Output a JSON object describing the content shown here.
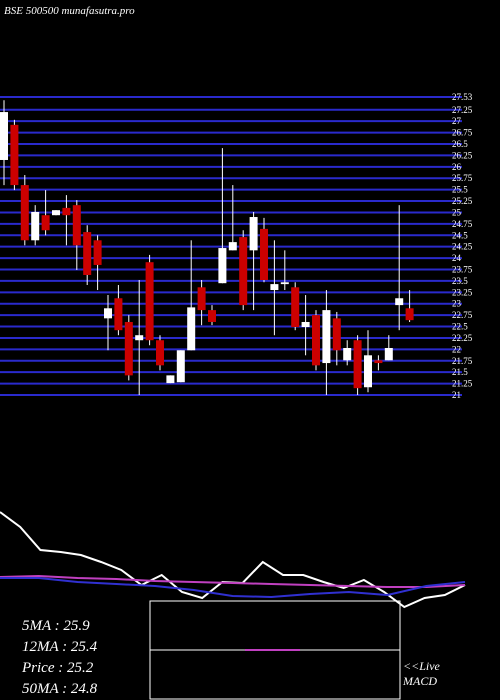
{
  "chart_data": {
    "type": "candlestick",
    "title": "BSE 500500  munafasutra.pro",
    "ylim": [
      21.0,
      27.53
    ],
    "yticks": [
      21.0,
      21.25,
      21.5,
      21.75,
      22.0,
      22.25,
      22.5,
      22.75,
      23.0,
      23.25,
      23.5,
      23.75,
      24.0,
      24.25,
      24.5,
      24.75,
      25.0,
      25.25,
      25.5,
      25.75,
      26.0,
      26.25,
      26.5,
      26.75,
      27.0,
      27.25,
      27.53
    ],
    "grid_color": "#2a2acc",
    "up_color": "#ffffff",
    "down_color": "#cc0000",
    "open": [
      26.15,
      26.92,
      25.6,
      24.39,
      24.94,
      24.94,
      25.1,
      25.16,
      24.57,
      24.39,
      22.68,
      23.12,
      22.6,
      22.2,
      23.91,
      22.2,
      21.26,
      21.28,
      21.98,
      23.36,
      22.86,
      23.45,
      24.17,
      24.46,
      24.17,
      24.64,
      23.3,
      23.43,
      23.36,
      22.49,
      22.75,
      21.7,
      22.68,
      21.76,
      22.2,
      21.17,
      21.76,
      21.76,
      22.97,
      22.9
    ],
    "high": [
      27.46,
      27.03,
      25.82,
      25.16,
      25.49,
      25.05,
      25.38,
      25.27,
      24.72,
      24.5,
      23.19,
      23.41,
      22.75,
      23.52,
      24.07,
      22.31,
      21.43,
      21.98,
      24.39,
      23.52,
      22.97,
      26.41,
      25.6,
      24.61,
      25.01,
      24.88,
      24.39,
      24.17,
      23.47,
      23.19,
      22.86,
      23.3,
      22.82,
      22.2,
      22.31,
      22.42,
      21.87,
      22.31,
      25.16,
      23.3
    ],
    "low": [
      25.6,
      25.49,
      24.28,
      24.28,
      24.5,
      24.94,
      24.28,
      23.74,
      23.41,
      23.3,
      21.98,
      22.31,
      21.32,
      21.0,
      22.09,
      21.54,
      21.26,
      21.28,
      21.98,
      22.53,
      22.53,
      23.45,
      24.17,
      22.86,
      22.86,
      23.47,
      22.31,
      23.3,
      22.42,
      21.87,
      21.54,
      21.0,
      21.65,
      21.65,
      21.0,
      21.06,
      21.54,
      21.76,
      22.42,
      22.6
    ],
    "close": [
      27.2,
      25.6,
      24.39,
      25.01,
      24.61,
      25.05,
      24.94,
      24.28,
      23.63,
      23.85,
      22.9,
      22.42,
      21.43,
      22.31,
      22.2,
      21.65,
      21.43,
      21.98,
      22.92,
      22.86,
      22.6,
      24.22,
      24.35,
      22.97,
      24.9,
      23.52,
      23.43,
      23.47,
      22.49,
      22.6,
      21.65,
      22.86,
      21.98,
      22.03,
      21.15,
      21.87,
      21.7,
      22.03,
      23.12,
      22.64
    ],
    "indicator_panel": {
      "ylim": [
        -10,
        100
      ],
      "series": [
        {
          "color": "#ffffff",
          "values": [
            88,
            73,
            50,
            48,
            45,
            38,
            30,
            15,
            25,
            8,
            2,
            18,
            17,
            38,
            25,
            25,
            18,
            12,
            20,
            8,
            -7,
            2,
            5,
            15
          ]
        },
        {
          "color": "#c040c0",
          "values": [
            23,
            24,
            22,
            21,
            19,
            18,
            17,
            16,
            15,
            14,
            13,
            13,
            15
          ]
        },
        {
          "color": "#3030d0",
          "values": [
            22,
            22,
            18,
            16,
            14,
            10,
            4,
            3,
            6,
            8,
            5,
            14,
            18
          ]
        }
      ]
    },
    "stats": [
      "5MA : 25.9",
      "12MA : 25.4",
      "Price  : 25.2",
      "50MA : 24.8"
    ],
    "macd_label": [
      "<<Live",
      "MACD"
    ]
  }
}
